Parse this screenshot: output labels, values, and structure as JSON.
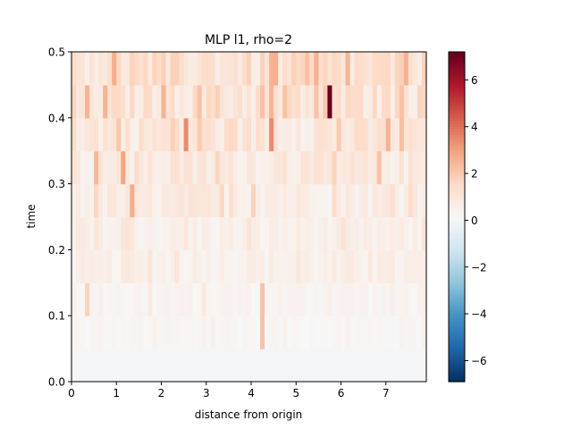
{
  "chart_data": {
    "type": "heatmap",
    "title": "MLP l1, rho=2",
    "xlabel": "distance from origin",
    "ylabel": "time",
    "xlim": [
      0,
      7.9
    ],
    "ylim": [
      0,
      0.5
    ],
    "x_ticks": [
      "0",
      "1",
      "2",
      "3",
      "4",
      "5",
      "6",
      "7"
    ],
    "y_ticks": [
      "0.0",
      "0.1",
      "0.2",
      "0.3",
      "0.4",
      "0.5"
    ],
    "colormap": "RdBu_r",
    "colorbar": {
      "range": [
        -6.9,
        7.2
      ],
      "ticks": [
        "−6",
        "−4",
        "−2",
        "0",
        "2",
        "4",
        "6"
      ]
    },
    "grid": false,
    "legend": "none",
    "rows": 10,
    "columns": 79,
    "row_time_edges": [
      0,
      0.05,
      0.1,
      0.15,
      0.2,
      0.25,
      0.3,
      0.35,
      0.4,
      0.45,
      0.5
    ],
    "row_base_values": [
      0.0,
      0.25,
      0.35,
      0.5,
      0.5,
      0.7,
      0.8,
      1.0,
      1.1,
      1.2
    ],
    "hotspots": [
      {
        "x": 5.8,
        "t": 0.425,
        "value": 7.2
      },
      {
        "x": 2.55,
        "t": 0.375,
        "value": 3.5
      },
      {
        "x": 4.45,
        "t": 0.375,
        "value": 3.5
      },
      {
        "x": 1.2,
        "t": 0.325,
        "value": 3.0
      },
      {
        "x": 1.3,
        "t": 0.275,
        "value": 2.8
      },
      {
        "x": 0.35,
        "t": 0.425,
        "value": 2.6
      },
      {
        "x": 2.0,
        "t": 0.425,
        "value": 2.6
      },
      {
        "x": 7.0,
        "t": 0.375,
        "value": 2.6
      },
      {
        "x": 0.6,
        "t": 0.325,
        "value": 2.5
      },
      {
        "x": 6.8,
        "t": 0.325,
        "value": 2.2
      },
      {
        "x": 4.3,
        "t": 0.125,
        "value": 2.2
      },
      {
        "x": 4.2,
        "t": 0.075,
        "value": 2.2
      },
      {
        "x": 5.4,
        "t": 0.425,
        "value": 2.2
      },
      {
        "x": 5.9,
        "t": 0.375,
        "value": 2.0
      },
      {
        "x": 2.9,
        "t": 0.375,
        "value": 2.0
      },
      {
        "x": 4.0,
        "t": 0.275,
        "value": 1.8
      },
      {
        "x": 0.35,
        "t": 0.125,
        "value": 1.8
      }
    ]
  }
}
